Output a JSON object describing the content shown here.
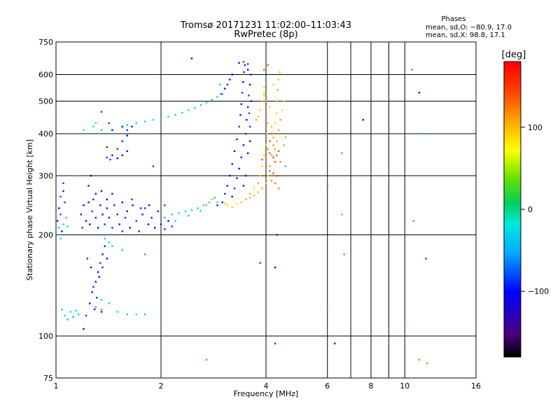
{
  "chart_data": {
    "type": "scatter",
    "title": "Tromsø 20171231 11:02:00–11:03:43",
    "subtitle": "RwPretec (8p)",
    "xlabel": "Frequency [MHz]",
    "ylabel": "Stationary phase Virtual Height [km]",
    "x_scale": "log",
    "y_scale": "log",
    "xlim": [
      1,
      16
    ],
    "ylim": [
      75,
      750
    ],
    "x_ticks": [
      1,
      2,
      4,
      6,
      8,
      10,
      16
    ],
    "y_ticks": [
      75,
      100,
      200,
      300,
      400,
      500,
      600,
      750
    ],
    "grid": true,
    "stats": {
      "heading": "Phases",
      "line1": "mean, sd,O: −80.9, 17.0",
      "line2": "mean, sd,X:  98.8, 17.1"
    },
    "colorbar": {
      "label": "[deg]",
      "range": [
        -180,
        180
      ],
      "ticks": [
        100,
        0,
        -100
      ],
      "tick_labels": [
        "100",
        "0",
        "−100"
      ],
      "colors": [
        "#000000",
        "#4b0080",
        "#0000ff",
        "#00c8ff",
        "#00e8a0",
        "#00d000",
        "#c8f000",
        "#ffff00",
        "#ffa500",
        "#ff4000",
        "#ff0000"
      ]
    },
    "series": [
      {
        "phase": -95,
        "points": [
          [
            1.01,
            220
          ],
          [
            1.02,
            240
          ],
          [
            1.03,
            230
          ],
          [
            1.03,
            260
          ],
          [
            1.05,
            270
          ],
          [
            1.05,
            285
          ],
          [
            1.04,
            205
          ],
          [
            1.06,
            250
          ],
          [
            1.18,
            230
          ],
          [
            1.19,
            210
          ],
          [
            1.2,
            245
          ],
          [
            1.22,
            220
          ],
          [
            1.24,
            250
          ],
          [
            1.25,
            215
          ],
          [
            1.27,
            235
          ],
          [
            1.28,
            255
          ],
          [
            1.3,
            225
          ],
          [
            1.32,
            210
          ],
          [
            1.34,
            245
          ],
          [
            1.36,
            230
          ],
          [
            1.38,
            215
          ],
          [
            1.4,
            240
          ],
          [
            1.42,
            225
          ],
          [
            1.45,
            210
          ],
          [
            1.47,
            245
          ],
          [
            1.5,
            230
          ],
          [
            1.52,
            215
          ],
          [
            1.55,
            205
          ],
          [
            1.58,
            225
          ],
          [
            1.6,
            235
          ],
          [
            1.63,
            210
          ],
          [
            1.66,
            245
          ],
          [
            1.7,
            220
          ],
          [
            1.73,
            205
          ],
          [
            1.77,
            230
          ],
          [
            1.8,
            240
          ],
          [
            1.84,
            215
          ],
          [
            1.88,
            225
          ],
          [
            1.92,
            210
          ],
          [
            1.96,
            235
          ],
          [
            2.0,
            215
          ],
          [
            2.05,
            208
          ],
          [
            2.1,
            220
          ],
          [
            2.15,
            212
          ],
          [
            1.24,
            280
          ],
          [
            1.26,
            300
          ],
          [
            1.3,
            265
          ],
          [
            1.35,
            270
          ],
          [
            1.4,
            255
          ],
          [
            1.45,
            265
          ],
          [
            1.55,
            250
          ],
          [
            1.65,
            255
          ],
          [
            1.75,
            240
          ],
          [
            1.85,
            245
          ],
          [
            2.05,
            245
          ],
          [
            1.2,
            105
          ],
          [
            1.22,
            115
          ],
          [
            1.25,
            125
          ],
          [
            1.27,
            135
          ],
          [
            1.3,
            145
          ],
          [
            1.32,
            155
          ],
          [
            1.34,
            165
          ],
          [
            1.36,
            175
          ],
          [
            1.38,
            185
          ],
          [
            1.28,
            140
          ],
          [
            1.31,
            130
          ],
          [
            1.33,
            150
          ],
          [
            1.36,
            160
          ],
          [
            1.4,
            170
          ],
          [
            1.23,
            170
          ],
          [
            1.26,
            160
          ],
          [
            1.29,
            120
          ],
          [
            1.35,
            118
          ],
          [
            1.4,
            340
          ],
          [
            1.43,
            335
          ],
          [
            1.45,
            345
          ],
          [
            1.5,
            338
          ],
          [
            1.55,
            345
          ],
          [
            1.6,
            355
          ],
          [
            1.5,
            360
          ],
          [
            1.55,
            380
          ],
          [
            1.6,
            395
          ],
          [
            1.45,
            410
          ],
          [
            1.42,
            430
          ],
          [
            1.55,
            420
          ],
          [
            1.6,
            410
          ],
          [
            1.65,
            420
          ],
          [
            1.7,
            430
          ],
          [
            1.4,
            365
          ],
          [
            2.9,
            245
          ],
          [
            3.0,
            250
          ],
          [
            3.05,
            265
          ],
          [
            3.1,
            280
          ],
          [
            3.15,
            300
          ],
          [
            3.2,
            325
          ],
          [
            3.25,
            355
          ],
          [
            3.3,
            385
          ],
          [
            3.35,
            420
          ],
          [
            3.38,
            455
          ],
          [
            3.4,
            490
          ],
          [
            3.42,
            530
          ],
          [
            3.44,
            570
          ],
          [
            3.46,
            610
          ],
          [
            3.48,
            640
          ],
          [
            3.2,
            260
          ],
          [
            3.25,
            275
          ],
          [
            3.3,
            295
          ],
          [
            3.35,
            315
          ],
          [
            3.4,
            340
          ],
          [
            3.45,
            370
          ],
          [
            3.5,
            400
          ],
          [
            3.52,
            440
          ],
          [
            3.55,
            480
          ],
          [
            3.57,
            520
          ],
          [
            3.6,
            560
          ],
          [
            3.62,
            600
          ],
          [
            3.55,
            620
          ],
          [
            3.5,
            300
          ],
          [
            3.45,
            280
          ],
          [
            3.55,
            350
          ],
          [
            3.6,
            420
          ],
          [
            3.58,
            460
          ],
          [
            3.63,
            500
          ],
          [
            3.6,
            380
          ],
          [
            3.1,
            560
          ],
          [
            3.15,
            580
          ],
          [
            3.2,
            600
          ],
          [
            3.05,
            545
          ],
          [
            2.98,
            525
          ],
          [
            3.35,
            650
          ],
          [
            3.45,
            655
          ],
          [
            3.55,
            645
          ],
          [
            1.35,
            465
          ],
          [
            2.45,
            670
          ],
          [
            7.6,
            440
          ],
          [
            11.0,
            530
          ],
          [
            11.5,
            170
          ],
          [
            4.25,
            95
          ],
          [
            6.3,
            95
          ],
          [
            4.25,
            160
          ],
          [
            3.85,
            165
          ],
          [
            4.3,
            200
          ],
          [
            1.9,
            320
          ]
        ]
      },
      {
        "phase": -25,
        "points": [
          [
            1.0,
            205
          ],
          [
            1.01,
            200
          ],
          [
            1.02,
            210
          ],
          [
            1.03,
            195
          ],
          [
            1.05,
            215
          ],
          [
            1.07,
            225
          ],
          [
            1.08,
            212
          ],
          [
            1.04,
            120
          ],
          [
            1.06,
            115
          ],
          [
            1.08,
            112
          ],
          [
            1.1,
            118
          ],
          [
            1.12,
            114
          ],
          [
            1.14,
            119
          ],
          [
            1.16,
            116
          ],
          [
            1.5,
            118
          ],
          [
            1.6,
            116
          ],
          [
            1.7,
            116
          ],
          [
            1.8,
            116
          ],
          [
            1.3,
            122
          ],
          [
            1.35,
            128
          ],
          [
            1.42,
            125
          ],
          [
            1.6,
            425
          ],
          [
            1.7,
            430
          ],
          [
            1.8,
            435
          ],
          [
            1.9,
            440
          ],
          [
            2.0,
            445
          ],
          [
            2.1,
            450
          ],
          [
            2.2,
            455
          ],
          [
            2.3,
            462
          ],
          [
            2.4,
            470
          ],
          [
            2.5,
            478
          ],
          [
            2.6,
            487
          ],
          [
            2.7,
            495
          ],
          [
            2.8,
            505
          ],
          [
            2.9,
            515
          ],
          [
            3.0,
            525
          ],
          [
            2.05,
            225
          ],
          [
            2.15,
            230
          ],
          [
            2.25,
            232
          ],
          [
            2.35,
            235
          ],
          [
            2.45,
            237
          ],
          [
            2.55,
            240
          ],
          [
            2.65,
            245
          ],
          [
            2.75,
            250
          ],
          [
            2.85,
            258
          ],
          [
            2.2,
            220
          ],
          [
            2.4,
            228
          ],
          [
            2.6,
            236
          ],
          [
            1.3,
            430
          ],
          [
            1.28,
            420
          ],
          [
            1.35,
            410
          ],
          [
            1.45,
            400
          ],
          [
            1.2,
            410
          ],
          [
            1.25,
            400
          ],
          [
            1.38,
            195
          ],
          [
            1.42,
            190
          ],
          [
            1.45,
            185
          ],
          [
            1.55,
            180
          ],
          [
            4.55,
            320
          ],
          [
            6.6,
            350
          ],
          [
            11.2,
            400
          ],
          [
            1.15,
            300
          ],
          [
            2.95,
            560
          ]
        ]
      },
      {
        "phase": 100,
        "points": [
          [
            3.05,
            248
          ],
          [
            3.1,
            245
          ],
          [
            3.2,
            242
          ],
          [
            3.3,
            248
          ],
          [
            3.4,
            250
          ],
          [
            3.5,
            255
          ],
          [
            3.6,
            258
          ],
          [
            3.7,
            262
          ],
          [
            3.8,
            268
          ],
          [
            3.9,
            275
          ],
          [
            4.0,
            285
          ],
          [
            4.05,
            300
          ],
          [
            4.1,
            320
          ],
          [
            4.15,
            345
          ],
          [
            4.2,
            370
          ],
          [
            4.22,
            400
          ],
          [
            4.25,
            430
          ],
          [
            4.28,
            460
          ],
          [
            4.3,
            500
          ],
          [
            4.32,
            540
          ],
          [
            4.35,
            580
          ],
          [
            4.38,
            610
          ],
          [
            3.6,
            265
          ],
          [
            3.7,
            275
          ],
          [
            3.8,
            285
          ],
          [
            3.85,
            300
          ],
          [
            3.9,
            320
          ],
          [
            3.95,
            345
          ],
          [
            4.0,
            370
          ],
          [
            4.02,
            400
          ],
          [
            4.05,
            430
          ],
          [
            4.0,
            500
          ],
          [
            3.95,
            530
          ],
          [
            4.1,
            480
          ],
          [
            4.15,
            420
          ],
          [
            4.2,
            390
          ],
          [
            4.25,
            360
          ],
          [
            4.3,
            380
          ],
          [
            4.35,
            410
          ],
          [
            4.4,
            440
          ],
          [
            4.45,
            470
          ],
          [
            4.2,
            560
          ],
          [
            3.85,
            470
          ],
          [
            3.9,
            500
          ],
          [
            3.95,
            520
          ],
          [
            3.8,
            450
          ],
          [
            3.75,
            440
          ],
          [
            3.95,
            550
          ],
          [
            4.5,
            500
          ],
          [
            4.5,
            370
          ],
          [
            4.55,
            390
          ],
          [
            2.7,
            245
          ],
          [
            2.8,
            255
          ],
          [
            2.9,
            250
          ]
        ]
      },
      {
        "phase": 130,
        "points": [
          [
            4.0,
            340
          ],
          [
            4.05,
            360
          ],
          [
            4.1,
            380
          ],
          [
            4.15,
            400
          ],
          [
            4.1,
            350
          ],
          [
            4.2,
            340
          ],
          [
            4.25,
            330
          ],
          [
            4.3,
            345
          ],
          [
            4.35,
            355
          ],
          [
            4.3,
            300
          ],
          [
            4.2,
            305
          ],
          [
            4.1,
            310
          ],
          [
            4.4,
            330
          ],
          [
            3.95,
            620
          ],
          [
            4.05,
            640
          ],
          [
            6.0,
            120
          ],
          [
            6.7,
            175
          ],
          [
            10.5,
            620
          ],
          [
            11.0,
            85
          ],
          [
            3.9,
            335
          ],
          [
            4.15,
            290
          ],
          [
            4.25,
            285
          ],
          [
            4.35,
            275
          ],
          [
            10.0,
            110
          ],
          [
            10.0,
            205
          ],
          [
            6.0,
            280
          ],
          [
            6.6,
            230
          ],
          [
            10.6,
            220
          ],
          [
            11.6,
            83
          ],
          [
            1.8,
            175
          ],
          [
            2.7,
            85
          ],
          [
            1.35,
            120
          ]
        ]
      }
    ]
  }
}
